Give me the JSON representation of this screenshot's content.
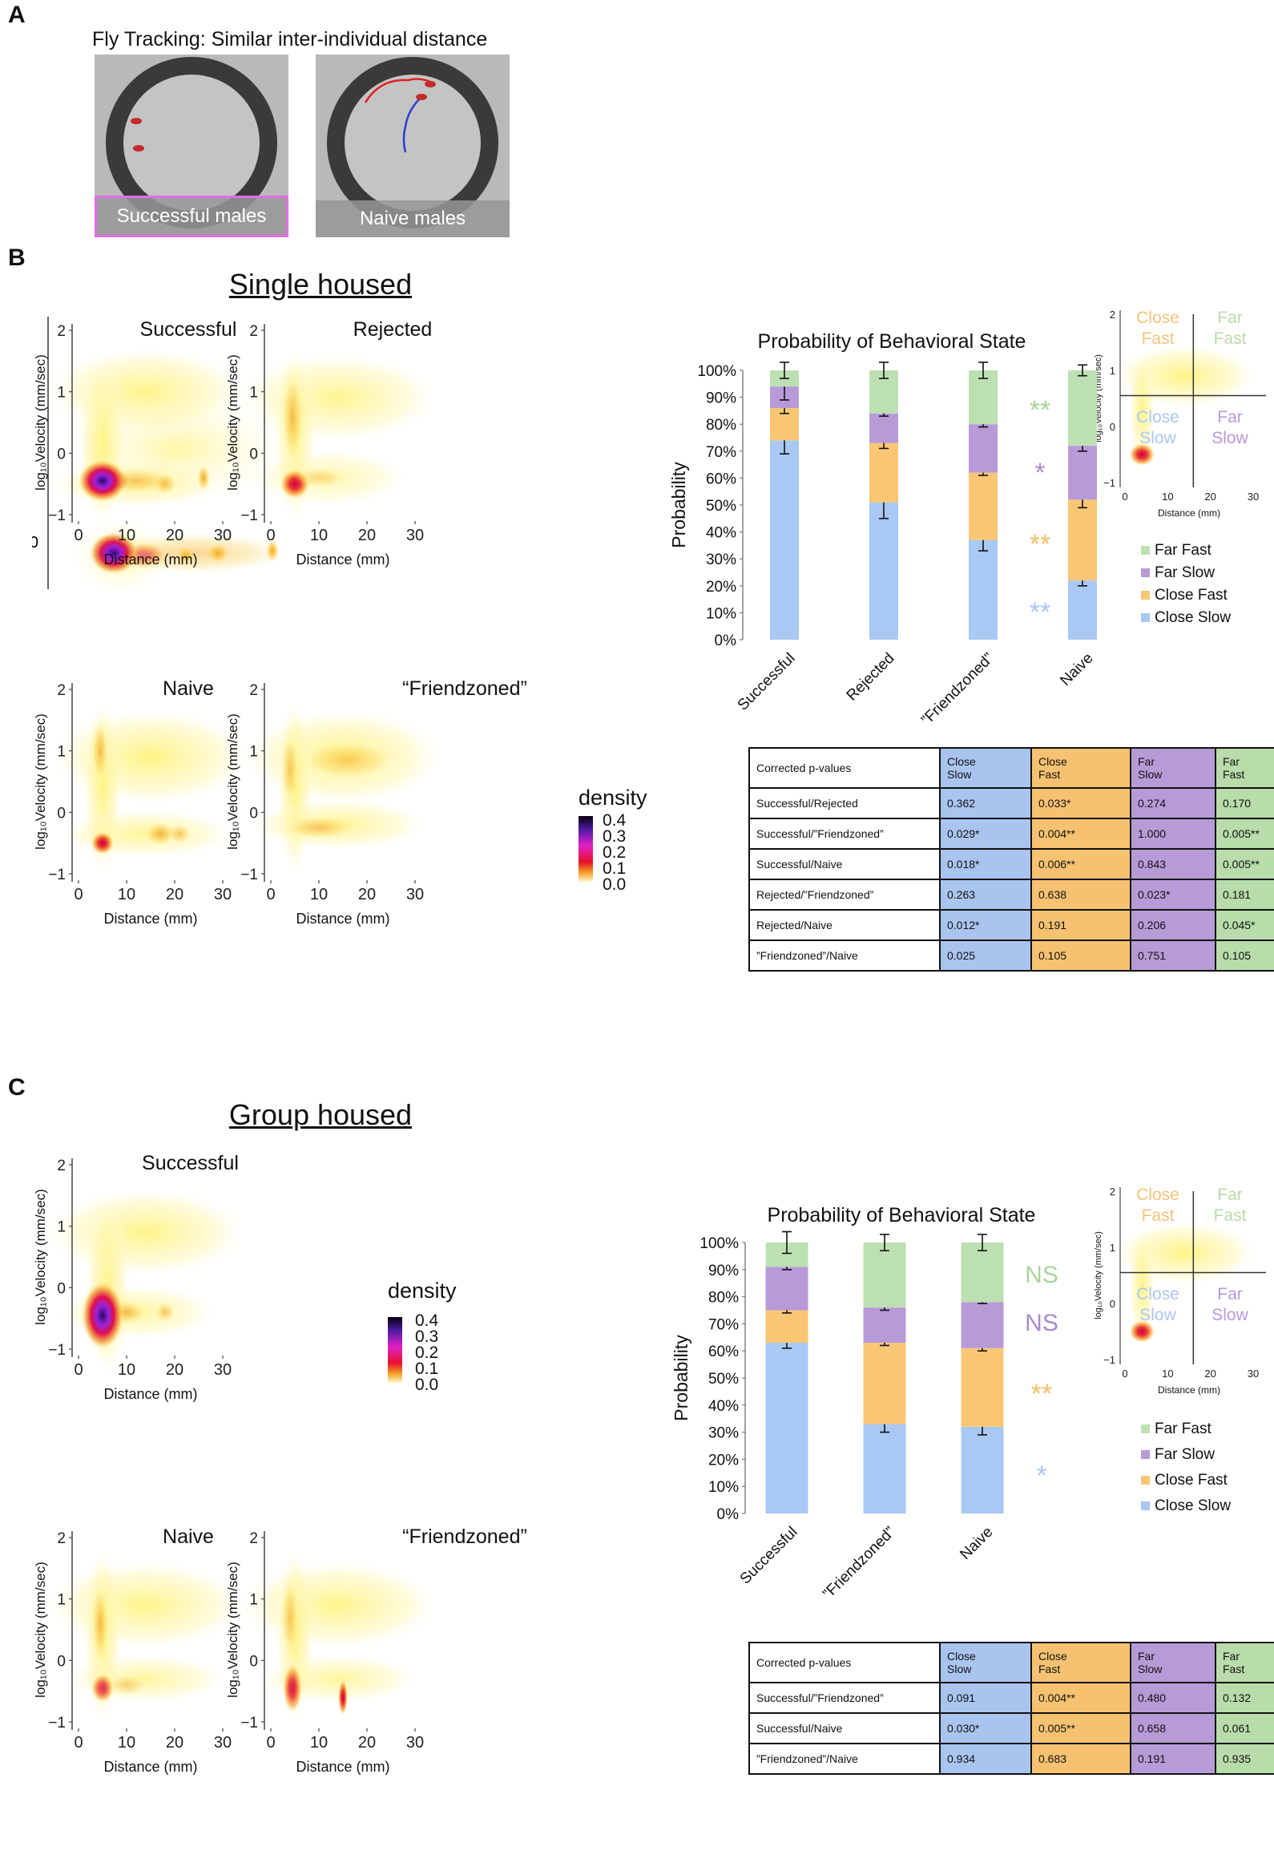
{
  "panel_a": {
    "letter": "A",
    "title": "Fly Tracking: Similar inter-individual distance",
    "videos": [
      {
        "label": "Successful males"
      },
      {
        "label": "Naive males"
      }
    ]
  },
  "panel_b": {
    "letter": "B",
    "heading": "Single housed"
  },
  "panel_c": {
    "letter": "C",
    "heading": "Group housed"
  },
  "density_legend": {
    "title": "density",
    "ticks": [
      "0.4",
      "0.3",
      "0.2",
      "0.1",
      "0.0"
    ]
  },
  "heatmap_axis": {
    "xlabel": "Distance (mm)",
    "ylabel": "log₁₀Velocity (mm/sec)",
    "xticks": [
      "0",
      "10",
      "20",
      "30"
    ],
    "yticks": [
      "2",
      "1",
      "0",
      "−1"
    ]
  },
  "heatmaps": {
    "b1": {
      "title": "Successful"
    },
    "b2": {
      "title": "Rejected"
    },
    "b3": {
      "title": "Naive"
    },
    "b4": {
      "title": "“Friendzoned”"
    },
    "c1": {
      "title": "Successful"
    },
    "c3": {
      "title": "Naive"
    },
    "c4": {
      "title": "“Friendzoned”"
    }
  },
  "quadrant_inset": {
    "labels": {
      "close_fast": "Close Fast",
      "far_fast": "Far Fast",
      "close_slow": "Close Slow",
      "far_slow": "Far Slow"
    },
    "xlabel": "Distance (mm)",
    "ylabel": "log₁₀Velocity (mm/sec)",
    "xticks": [
      "0",
      "10",
      "20",
      "30"
    ],
    "yticks": [
      "2",
      "1",
      "0",
      "−1"
    ]
  },
  "state_legend": [
    "Far Fast",
    "Far Slow",
    "Close Fast",
    "Close Slow"
  ],
  "colors": {
    "close_slow": "#a9c8f3",
    "close_fast": "#f9c774",
    "far_slow": "#b89ad8",
    "far_fast": "#bde0b2",
    "sig_close_slow": "#a9c8f3",
    "sig_close_fast": "#f2c068",
    "sig_far_slow": "#a98bd0",
    "sig_far_fast": "#a9d69c"
  },
  "chart_data": [
    {
      "type": "bar",
      "stacked": true,
      "title": "Probability of Behavioral State",
      "xlabel": "",
      "ylabel": "Probability",
      "ylim": [
        0,
        100
      ],
      "yticks": [
        "0%",
        "10%",
        "20%",
        "30%",
        "40%",
        "50%",
        "60%",
        "70%",
        "80%",
        "90%",
        "100%"
      ],
      "categories": [
        "Successful",
        "Rejected",
        "”Friendzoned”",
        "Naive"
      ],
      "series": [
        {
          "name": "Close Slow",
          "values": [
            74,
            51,
            37,
            22
          ],
          "errors": [
            5,
            6,
            4,
            2
          ]
        },
        {
          "name": "Close Fast",
          "values": [
            12,
            22,
            25,
            30
          ],
          "errors": [
            2,
            2,
            1,
            3
          ]
        },
        {
          "name": "Far Slow",
          "values": [
            8,
            11,
            18,
            20
          ],
          "errors": [
            5,
            1,
            1,
            2
          ]
        },
        {
          "name": "Far Fast",
          "values": [
            6,
            16,
            20,
            28
          ],
          "errors": [
            3,
            3,
            3,
            2
          ]
        }
      ],
      "significance": [
        {
          "series": "Far Fast",
          "label": "**"
        },
        {
          "series": "Far Slow",
          "label": "*"
        },
        {
          "series": "Close Fast",
          "label": "**"
        },
        {
          "series": "Close Slow",
          "label": "**"
        }
      ]
    },
    {
      "type": "bar",
      "stacked": true,
      "title": "Probability of Behavioral State",
      "xlabel": "",
      "ylabel": "Probability",
      "ylim": [
        0,
        100
      ],
      "yticks": [
        "0%",
        "10%",
        "20%",
        "30%",
        "40%",
        "50%",
        "60%",
        "70%",
        "80%",
        "90%",
        "100%"
      ],
      "categories": [
        "Successful",
        "”Friendzoned”",
        "Naive"
      ],
      "series": [
        {
          "name": "Close Slow",
          "values": [
            63,
            33,
            32
          ],
          "errors": [
            2,
            3,
            3
          ]
        },
        {
          "name": "Close Fast",
          "values": [
            12,
            30,
            29
          ],
          "errors": [
            1,
            1,
            1
          ]
        },
        {
          "name": "Far Slow",
          "values": [
            16,
            13,
            17
          ],
          "errors": [
            1,
            1,
            0.5
          ]
        },
        {
          "name": "Far Fast",
          "values": [
            9,
            24,
            22
          ],
          "errors": [
            4,
            3,
            3
          ]
        }
      ],
      "significance": [
        {
          "series": "Far Fast",
          "label": "NS"
        },
        {
          "series": "Far Slow",
          "label": "NS"
        },
        {
          "series": "Close Fast",
          "label": "**"
        },
        {
          "series": "Close Slow",
          "label": "*"
        }
      ]
    }
  ],
  "table_b": {
    "header": [
      "Corrected p-values",
      "Close\nSlow",
      "Close\nFast",
      "Far\nSlow",
      "Far\nFast"
    ],
    "rows": [
      [
        "Successful/Rejected",
        "0.362",
        "0.033*",
        "0.274",
        "0.170"
      ],
      [
        "Successful/”Friendzoned”",
        "0.029*",
        "0.004**",
        "1.000",
        "0.005**"
      ],
      [
        "Successful/Naive",
        "0.018*",
        "0.006**",
        "0.843",
        "0.005**"
      ],
      [
        "Rejected/”Friendzoned”",
        "0.263",
        "0.638",
        "0.023*",
        "0.181"
      ],
      [
        "Rejected/Naive",
        "0.012*",
        "0.191",
        "0.206",
        "0.045*"
      ],
      [
        "”Friendzoned”/Naive",
        "0.025",
        "0.105",
        "0.751",
        "0.105"
      ]
    ]
  },
  "table_c": {
    "header": [
      "Corrected p-values",
      "Close\nSlow",
      "Close\nFast",
      "Far\nSlow",
      "Far\nFast"
    ],
    "rows": [
      [
        "Successful/”Friendzoned”",
        "0.091",
        "0.004**",
        "0.480",
        "0.132"
      ],
      [
        "Successful/Naive",
        "0.030*",
        "0.005**",
        "0.658",
        "0.061"
      ],
      [
        "”Friendzoned”/Naive",
        "0.934",
        "0.683",
        "0.191",
        "0.935"
      ]
    ]
  }
}
